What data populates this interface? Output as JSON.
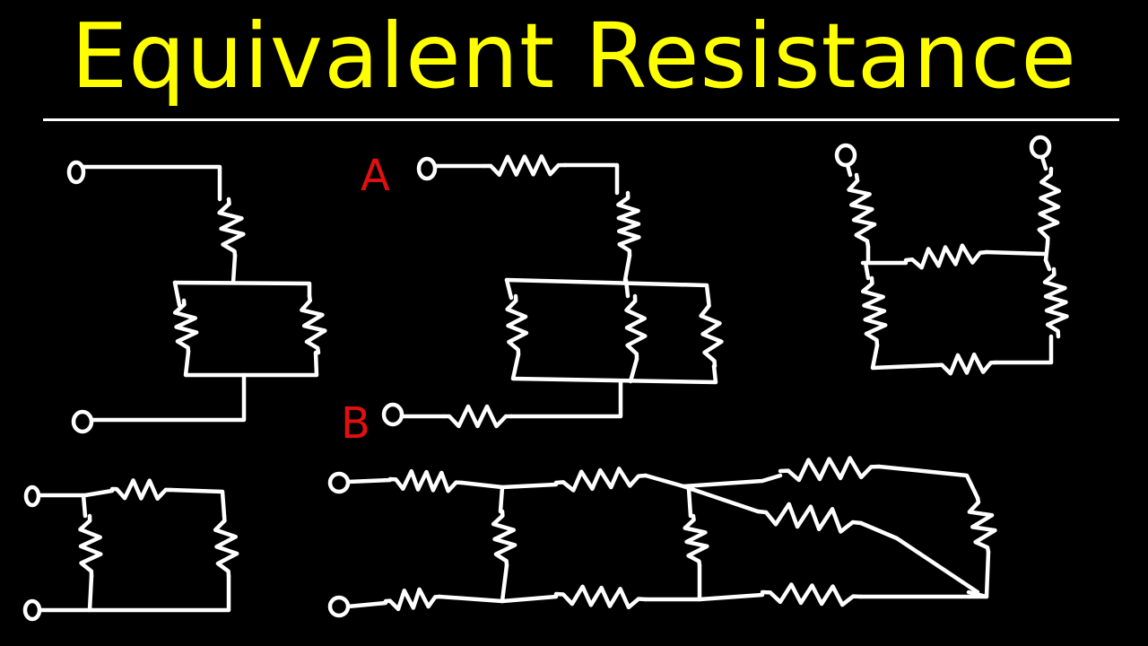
{
  "title": "Equivalent Resistance",
  "labels": {
    "a": "A",
    "b": "B"
  },
  "colors": {
    "background": "#000000",
    "title": "#ffff00",
    "wire": "#ffffff",
    "label": "#e01010"
  }
}
